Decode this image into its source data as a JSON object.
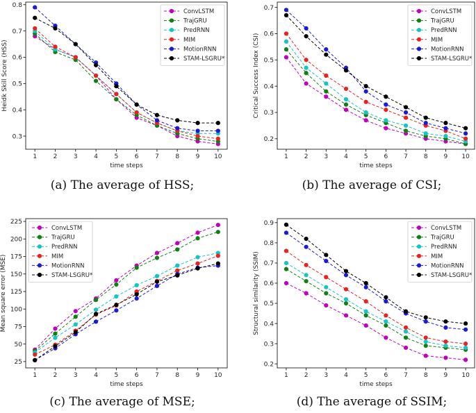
{
  "chart_data": [
    {
      "type": "line",
      "caption": "(a) The average of HSS;",
      "xlabel": "time steps",
      "ylabel": "Heidk Skill Score (HSS)",
      "x": [
        1,
        2,
        3,
        4,
        5,
        6,
        7,
        8,
        9,
        10
      ],
      "ylim": [
        0.25,
        0.81
      ],
      "yticks": [
        0.3,
        0.4,
        0.5,
        0.6,
        0.7,
        0.8
      ],
      "yticklabels": [
        "0.3",
        "0.4",
        "0.5",
        "0.6",
        "0.7",
        "0.8"
      ],
      "legend_position": "top-right",
      "series": [
        {
          "name": "ConvLSTM",
          "color": "#bf00bf",
          "values": [
            0.68,
            0.63,
            0.6,
            0.53,
            0.44,
            0.37,
            0.34,
            0.3,
            0.28,
            0.27
          ]
        },
        {
          "name": "TrajGRU",
          "color": "#127f12",
          "values": [
            0.69,
            0.62,
            0.59,
            0.51,
            0.44,
            0.38,
            0.34,
            0.31,
            0.29,
            0.28
          ]
        },
        {
          "name": "PredRNN",
          "color": "#17c4c4",
          "values": [
            0.7,
            0.63,
            0.6,
            0.53,
            0.46,
            0.39,
            0.35,
            0.32,
            0.31,
            0.31
          ]
        },
        {
          "name": "MIM",
          "color": "#e8231f",
          "values": [
            0.71,
            0.64,
            0.6,
            0.53,
            0.46,
            0.39,
            0.35,
            0.32,
            0.3,
            0.29
          ]
        },
        {
          "name": "MotionRNN",
          "color": "#1a1ad9",
          "values": [
            0.79,
            0.72,
            0.65,
            0.58,
            0.5,
            0.42,
            0.36,
            0.33,
            0.32,
            0.32
          ]
        },
        {
          "name": "STAM-LSGRU*",
          "color": "#000000",
          "values": [
            0.75,
            0.71,
            0.65,
            0.57,
            0.49,
            0.42,
            0.38,
            0.36,
            0.35,
            0.35
          ]
        }
      ]
    },
    {
      "type": "line",
      "caption": "(b) The average of CSI;",
      "xlabel": "time steps",
      "ylabel": "Critical Success Index (CSI)",
      "x": [
        1,
        2,
        3,
        4,
        5,
        6,
        7,
        8,
        9,
        10
      ],
      "ylim": [
        0.16,
        0.72
      ],
      "yticks": [
        0.2,
        0.3,
        0.4,
        0.5,
        0.6,
        0.7
      ],
      "yticklabels": [
        "0.2",
        "0.3",
        "0.4",
        "0.5",
        "0.6",
        "0.7"
      ],
      "legend_position": "top-right",
      "series": [
        {
          "name": "ConvLSTM",
          "color": "#bf00bf",
          "values": [
            0.51,
            0.41,
            0.36,
            0.31,
            0.27,
            0.24,
            0.22,
            0.2,
            0.19,
            0.18
          ]
        },
        {
          "name": "TrajGRU",
          "color": "#127f12",
          "values": [
            0.54,
            0.45,
            0.38,
            0.33,
            0.29,
            0.26,
            0.23,
            0.21,
            0.2,
            0.18
          ]
        },
        {
          "name": "PredRNN",
          "color": "#17c4c4",
          "values": [
            0.57,
            0.47,
            0.41,
            0.35,
            0.3,
            0.27,
            0.25,
            0.22,
            0.21,
            0.19
          ]
        },
        {
          "name": "MIM",
          "color": "#e8231f",
          "values": [
            0.6,
            0.5,
            0.44,
            0.39,
            0.34,
            0.31,
            0.28,
            0.25,
            0.23,
            0.2
          ]
        },
        {
          "name": "MotionRNN",
          "color": "#1a1ad9",
          "values": [
            0.69,
            0.62,
            0.54,
            0.47,
            0.38,
            0.33,
            0.3,
            0.26,
            0.24,
            0.22
          ]
        },
        {
          "name": "STAM-LSGRU*",
          "color": "#000000",
          "values": [
            0.67,
            0.59,
            0.52,
            0.46,
            0.4,
            0.36,
            0.32,
            0.28,
            0.26,
            0.24
          ]
        }
      ]
    },
    {
      "type": "line",
      "caption": "(c) The average of MSE;",
      "xlabel": "time steps",
      "ylabel": "Mean square error (MSE)",
      "x": [
        1,
        2,
        3,
        4,
        5,
        6,
        7,
        8,
        9,
        10
      ],
      "ylim": [
        16,
        229
      ],
      "yticks": [
        25,
        50,
        75,
        100,
        125,
        150,
        175,
        200,
        225
      ],
      "yticklabels": [
        "25",
        "50",
        "75",
        "100",
        "125",
        "150",
        "175",
        "200",
        "225"
      ],
      "legend_position": "top-left",
      "series": [
        {
          "name": "ConvLSTM",
          "color": "#bf00bf",
          "values": [
            42,
            72,
            97,
            115,
            141,
            162,
            180,
            194,
            209,
            220
          ]
        },
        {
          "name": "TrajGRU",
          "color": "#127f12",
          "values": [
            40,
            65,
            89,
            113,
            135,
            159,
            173,
            185,
            201,
            210
          ]
        },
        {
          "name": "PredRNN",
          "color": "#17c4c4",
          "values": [
            38,
            59,
            78,
            99,
            118,
            134,
            147,
            162,
            174,
            180
          ]
        },
        {
          "name": "MIM",
          "color": "#e8231f",
          "values": [
            35,
            49,
            69,
            92,
            105,
            125,
            140,
            155,
            165,
            176
          ]
        },
        {
          "name": "MotionRNN",
          "color": "#1a1ad9",
          "values": [
            27,
            44,
            64,
            82,
            98,
            115,
            133,
            150,
            159,
            162
          ]
        },
        {
          "name": "STAM-LSGRU*",
          "color": "#000000",
          "values": [
            27,
            47,
            67,
            93,
            106,
            121,
            139,
            148,
            158,
            165
          ]
        }
      ]
    },
    {
      "type": "line",
      "caption": "(d) The average of SSIM;",
      "xlabel": "time steps",
      "ylabel": "Structural similarity (SSIM)",
      "x": [
        1,
        2,
        3,
        4,
        5,
        6,
        7,
        8,
        9,
        10
      ],
      "ylim": [
        0.18,
        0.92
      ],
      "yticks": [
        0.2,
        0.3,
        0.4,
        0.5,
        0.6,
        0.7,
        0.8,
        0.9
      ],
      "yticklabels": [
        "0.2",
        "0.3",
        "0.4",
        "0.5",
        "0.6",
        "0.7",
        "0.8",
        "0.9"
      ],
      "legend_position": "top-right",
      "series": [
        {
          "name": "ConvLSTM",
          "color": "#bf00bf",
          "values": [
            0.6,
            0.55,
            0.49,
            0.44,
            0.39,
            0.33,
            0.28,
            0.24,
            0.23,
            0.22
          ]
        },
        {
          "name": "TrajGRU",
          "color": "#127f12",
          "values": [
            0.67,
            0.61,
            0.55,
            0.5,
            0.44,
            0.39,
            0.33,
            0.29,
            0.28,
            0.27
          ]
        },
        {
          "name": "PredRNN",
          "color": "#17c4c4",
          "values": [
            0.7,
            0.64,
            0.58,
            0.52,
            0.46,
            0.41,
            0.36,
            0.31,
            0.29,
            0.28
          ]
        },
        {
          "name": "MIM",
          "color": "#e8231f",
          "values": [
            0.76,
            0.69,
            0.63,
            0.57,
            0.51,
            0.44,
            0.38,
            0.33,
            0.31,
            0.3
          ]
        },
        {
          "name": "MotionRNN",
          "color": "#1a1ad9",
          "values": [
            0.85,
            0.78,
            0.71,
            0.64,
            0.58,
            0.51,
            0.45,
            0.41,
            0.38,
            0.37
          ]
        },
        {
          "name": "STAM-LSGRU*",
          "color": "#000000",
          "values": [
            0.89,
            0.82,
            0.74,
            0.66,
            0.6,
            0.53,
            0.46,
            0.43,
            0.41,
            0.4
          ]
        }
      ]
    }
  ]
}
